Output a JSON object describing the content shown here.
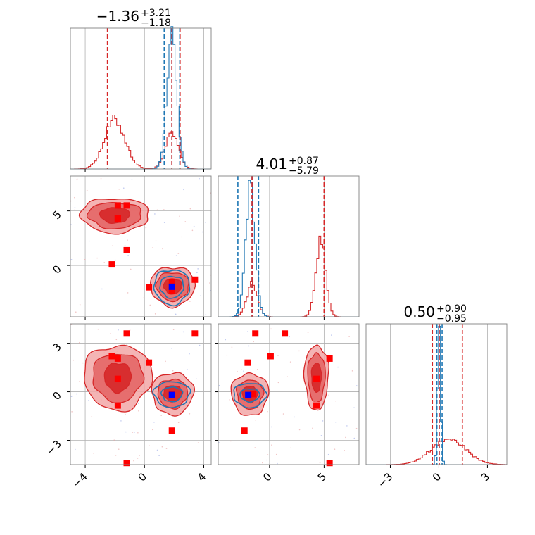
{
  "chart_data": {
    "type": "corner",
    "colors": {
      "blue": "#1f77b4",
      "red": "#d62728",
      "marker_red": "#ff0000",
      "marker_blue": "#0000ff",
      "grid": "#b0b0b0"
    },
    "parameters": [
      {
        "name": "p0",
        "range": [
          -5,
          4.5
        ],
        "ticks": [
          -4,
          0,
          4
        ],
        "tick_labels": [
          "−4",
          "0",
          "4"
        ]
      },
      {
        "name": "p1",
        "range": [
          -4.7,
          8.2
        ],
        "ticks": [
          0,
          5
        ],
        "tick_labels": [
          "0",
          "5"
        ]
      },
      {
        "name": "p2",
        "range": [
          -4.5,
          4.2
        ],
        "ticks": [
          -3,
          0,
          3
        ],
        "tick_labels": [
          "−3",
          "0",
          "3"
        ]
      }
    ],
    "titles": [
      {
        "value": "−1.36",
        "plus": "+3.21",
        "minus": "−1.18"
      },
      {
        "value": "4.01",
        "plus": "+0.87",
        "minus": "−5.79"
      },
      {
        "value": "0.50",
        "plus": "+0.90",
        "minus": "−0.95"
      }
    ],
    "quantile_lines": {
      "blue": [
        [
          1.33,
          1.85,
          2.38
        ],
        [
          -2.9,
          -1.6,
          -1.0
        ],
        [
          -0.12,
          0.02,
          0.2
        ]
      ],
      "red": [
        [
          -2.5,
          1.85,
          2.4
        ],
        [
          -1.6,
          5.0,
          5.0
        ],
        [
          -0.4,
          0.02,
          1.45
        ]
      ]
    },
    "histograms": {
      "blue": [
        {
          "mu": 1.85,
          "sigma": 0.34,
          "peak": 1.0
        },
        {
          "mu": -1.75,
          "sigma": 0.45,
          "peak": 0.98
        },
        {
          "mu": 0.02,
          "sigma": 0.1,
          "peak": 1.0
        }
      ],
      "red": [
        [
          {
            "mu": -2.0,
            "sigma": 0.7,
            "peak": 0.38
          },
          {
            "mu": 1.85,
            "sigma": 0.45,
            "peak": 0.27
          }
        ],
        [
          {
            "mu": -1.6,
            "sigma": 0.5,
            "peak": 0.25
          },
          {
            "mu": 4.7,
            "sigma": 0.45,
            "peak": 0.6
          }
        ],
        [
          {
            "mu": 0.6,
            "sigma": 1.05,
            "peak": 0.2
          }
        ]
      ]
    },
    "blue_marker": [
      1.85,
      -1.95,
      -0.2
    ],
    "truth_markers": [
      [
        -1.8,
        5.5,
        2.05
      ],
      [
        -1.8,
        4.3,
        0.8
      ],
      [
        -1.2,
        1.4,
        3.6
      ],
      [
        -2.2,
        0.1,
        2.2
      ],
      [
        0.3,
        -2.0,
        1.8
      ],
      [
        1.85,
        -1.5,
        -0.15
      ],
      [
        3.4,
        -1.3,
        3.6
      ],
      [
        1.85,
        -2.3,
        -2.4
      ],
      [
        -1.8,
        4.3,
        -0.85
      ],
      [
        -1.2,
        5.5,
        -4.4
      ]
    ],
    "contours_2d": {
      "p1_vs_p0": {
        "red": [
          {
            "center": [
              -2.0,
              4.6
            ],
            "rx": [
              2.3,
              1.8,
              1.0
            ],
            "ry": [
              1.6,
              1.2,
              0.7
            ]
          },
          {
            "center": [
              1.9,
              -1.9
            ],
            "rx": [
              1.5,
              1.1,
              0.6
            ],
            "ry": [
              1.8,
              1.3,
              0.7
            ]
          }
        ],
        "blue": [
          {
            "center": [
              1.85,
              -1.95
            ],
            "rx": [
              1.2,
              0.8
            ],
            "ry": [
              1.6,
              1.0
            ]
          }
        ]
      },
      "p2_vs_p0": {
        "red": [
          {
            "center": [
              -1.8,
              0.9
            ],
            "rx": [
              2.3,
              1.7,
              0.9
            ],
            "ry": [
              2.0,
              1.5,
              0.9
            ]
          },
          {
            "center": [
              1.9,
              -0.1
            ],
            "rx": [
              1.4,
              1.0,
              0.6
            ],
            "ry": [
              1.3,
              0.9,
              0.5
            ]
          }
        ],
        "blue": [
          {
            "center": [
              1.85,
              -0.15
            ],
            "rx": [
              1.2,
              0.7
            ],
            "ry": [
              0.8,
              0.45
            ]
          }
        ]
      },
      "p2_vs_p1": {
        "red": [
          {
            "center": [
              -1.8,
              -0.15
            ],
            "rx": [
              1.7,
              1.2,
              0.7
            ],
            "ry": [
              1.3,
              0.9,
              0.5
            ]
          },
          {
            "center": [
              4.3,
              0.9
            ],
            "rx": [
              1.1,
              0.8,
              0.45
            ],
            "ry": [
              2.0,
              1.5,
              0.9
            ]
          }
        ],
        "blue": [
          {
            "center": [
              -1.8,
              -0.2
            ],
            "rx": [
              1.5,
              0.9
            ],
            "ry": [
              0.75,
              0.4
            ]
          }
        ]
      }
    }
  }
}
